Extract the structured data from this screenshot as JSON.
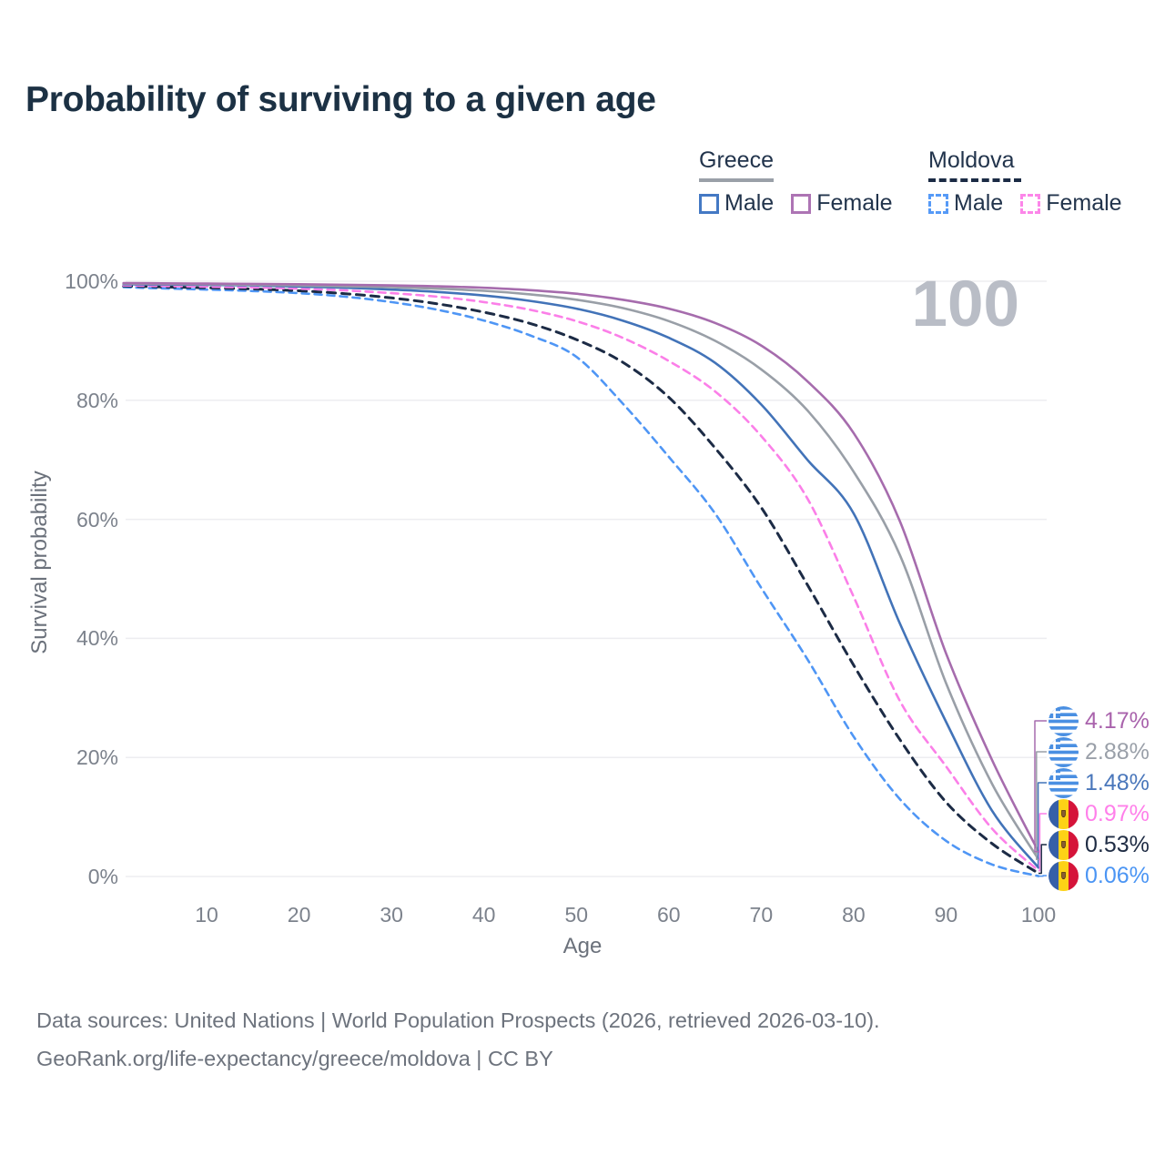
{
  "title": "Probability of surviving to a given age",
  "watermark": "100",
  "legend": {
    "groups": [
      {
        "name": "Greece",
        "style": "solid",
        "items": [
          {
            "label": "Male"
          },
          {
            "label": "Female"
          }
        ]
      },
      {
        "name": "Moldova",
        "style": "dashed",
        "items": [
          {
            "label": "Male"
          },
          {
            "label": "Female"
          }
        ]
      }
    ]
  },
  "chart_data": {
    "type": "line",
    "title": "Probability of surviving to a given age",
    "xlabel": "Age",
    "ylabel": "Survival probability",
    "xlim": [
      0,
      100
    ],
    "ylim": [
      0,
      100
    ],
    "grid": "horizontal",
    "legend_position": "top-right",
    "hover_age_label": "100",
    "x_ticks": [
      10,
      20,
      30,
      40,
      50,
      60,
      70,
      80,
      90,
      100
    ],
    "y_tick_values": [
      0,
      20,
      40,
      60,
      80,
      100
    ],
    "y_tick_labels": [
      "0%",
      "20%",
      "40%",
      "60%",
      "80%",
      "100%"
    ],
    "ages": [
      1,
      5,
      10,
      15,
      20,
      25,
      30,
      35,
      40,
      45,
      50,
      55,
      60,
      65,
      70,
      75,
      80,
      85,
      90,
      95,
      100
    ],
    "series": [
      {
        "id": "moldova-male",
        "name": "Moldova Male",
        "country": "Moldova",
        "sex": "Male",
        "color": "#4f96f5",
        "line": "dashed",
        "width": 2.6,
        "dash": "8 6",
        "row": 5,
        "end_label": "0.06%",
        "end_text_color": "#4b95f4",
        "flag": "moldova",
        "values": [
          99.0,
          98.8,
          98.6,
          98.35,
          98.0,
          97.4,
          96.5,
          95.2,
          93.4,
          90.9,
          87.3,
          79.5,
          70.5,
          61.0,
          48.5,
          36.5,
          23.5,
          13.0,
          6.0,
          2.0,
          0.06
        ]
      },
      {
        "id": "moldova-both",
        "name": "Moldova",
        "country": "Moldova",
        "sex": "Both sexes",
        "color": "#1c2b45",
        "line": "dashed",
        "width": 3,
        "dash": "9 7",
        "row": 4,
        "end_label": "0.53%",
        "end_text_color": "#1f2c44",
        "flag": "moldova",
        "values": [
          99.2,
          99.05,
          98.9,
          98.7,
          98.4,
          97.9,
          97.2,
          96.2,
          94.8,
          92.9,
          90.2,
          86.4,
          80.5,
          72.0,
          62.0,
          49.0,
          35.5,
          23.0,
          12.5,
          5.5,
          0.53
        ]
      },
      {
        "id": "moldova-female",
        "name": "Moldova Female",
        "country": "Moldova",
        "sex": "Female",
        "color": "#fb7fe8",
        "line": "dashed",
        "width": 2.6,
        "dash": "8 6",
        "row": 3,
        "end_label": "0.97%",
        "end_text_color": "#ff80ea",
        "flag": "moldova",
        "values": [
          99.3,
          99.2,
          99.1,
          98.95,
          98.75,
          98.45,
          98.0,
          97.4,
          96.5,
          95.2,
          93.3,
          90.5,
          86.6,
          81.5,
          74.0,
          63.5,
          47.0,
          29.5,
          18.5,
          8.0,
          0.97
        ]
      },
      {
        "id": "greece-male",
        "name": "Greece Male",
        "country": "Greece",
        "sex": "Male",
        "color": "#4273b8",
        "line": "solid",
        "width": 2.6,
        "dash": "",
        "row": 2,
        "end_label": "1.48%",
        "end_text_color": "#4a77bb",
        "flag": "greece",
        "values": [
          99.5,
          99.45,
          99.4,
          99.3,
          99.1,
          98.9,
          98.6,
          98.2,
          97.6,
          96.7,
          95.4,
          93.4,
          90.5,
          86.3,
          79.3,
          70.0,
          61.0,
          42.5,
          26.0,
          11.0,
          1.48
        ]
      },
      {
        "id": "greece-both",
        "name": "Greece",
        "country": "Greece",
        "sex": "Both sexes",
        "color": "#999fa7",
        "line": "solid",
        "width": 2.6,
        "dash": "",
        "row": 1,
        "end_label": "2.88%",
        "end_text_color": "#9aa0a9",
        "flag": "greece",
        "values": [
          99.6,
          99.55,
          99.5,
          99.4,
          99.3,
          99.15,
          99.0,
          98.75,
          98.4,
          97.8,
          96.9,
          95.5,
          93.3,
          90.0,
          85.2,
          78.3,
          68.0,
          54.0,
          32.5,
          15.5,
          2.88
        ]
      },
      {
        "id": "greece-female",
        "name": "Greece Female",
        "country": "Greece",
        "sex": "Female",
        "color": "#a66cad",
        "line": "solid",
        "width": 2.6,
        "dash": "",
        "row": 0,
        "end_label": "4.17%",
        "end_text_color": "#a963ac",
        "flag": "greece",
        "values": [
          99.7,
          99.65,
          99.6,
          99.55,
          99.5,
          99.4,
          99.3,
          99.15,
          98.9,
          98.5,
          97.9,
          96.9,
          95.4,
          93.0,
          89.2,
          83.2,
          74.5,
          59.7,
          37.5,
          19.5,
          4.17
        ]
      }
    ]
  },
  "footer": {
    "line1": "Data sources: United Nations | World Population Prospects (2026, retrieved 2026-03-10).",
    "line2": "GeoRank.org/life-expectancy/greece/moldova | CC BY"
  }
}
